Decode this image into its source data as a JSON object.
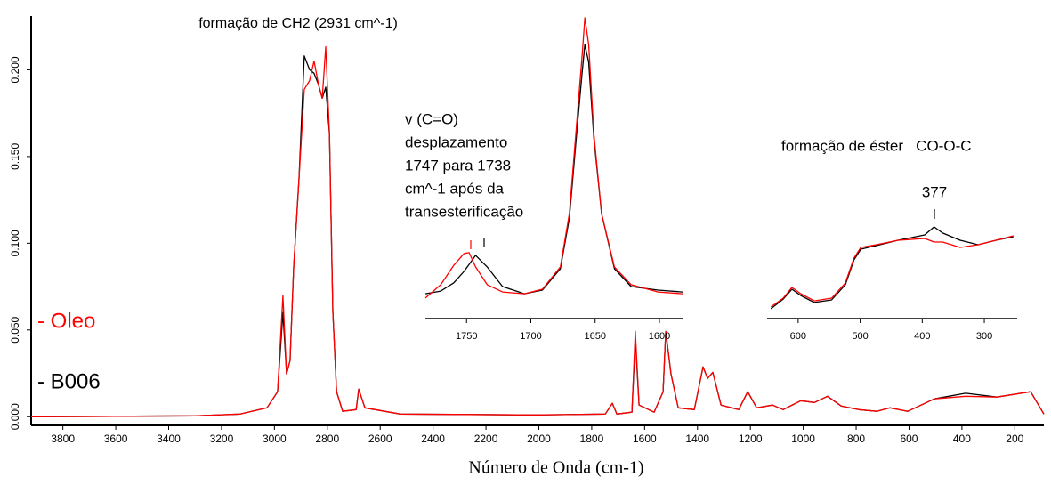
{
  "chart_data": [
    {
      "type": "line",
      "title": "formação de CH2 (2931 cm^-1)",
      "x_label": "Número de Onda (cm-1)",
      "xlim": [
        3920,
        90
      ],
      "ylim": [
        -0.005,
        0.231
      ],
      "xticks": [
        3800,
        3600,
        3400,
        3200,
        3000,
        2800,
        2600,
        2400,
        2200,
        2000,
        1800,
        1600,
        1400,
        1200,
        1000,
        800,
        600,
        400,
        200
      ],
      "yticks": [
        {
          "value": 0,
          "label": "0.000"
        },
        {
          "value": 0.05,
          "label": "0.050"
        },
        {
          "value": 0.1,
          "label": "0.100"
        },
        {
          "value": 0.15,
          "label": "0.150"
        },
        {
          "value": 0.2,
          "label": "0.200"
        }
      ],
      "x": [
        3920,
        3297,
        3129,
        3028,
        2988,
        2968,
        2954,
        2941,
        2927,
        2907,
        2887,
        2867,
        2850,
        2833,
        2819,
        2806,
        2792,
        2779,
        2765,
        2742,
        2691,
        2681,
        2658,
        2523,
        2018,
        1749,
        1722,
        1705,
        1648,
        1635,
        1621,
        1564,
        1530,
        1520,
        1500,
        1473,
        1412,
        1379,
        1362,
        1342,
        1311,
        1244,
        1210,
        1176,
        1116,
        1076,
        1009,
        958,
        908,
        857,
        790,
        722,
        672,
        605,
        504,
        386,
        268,
        140,
        90
      ],
      "series": [
        {
          "name": "- B006",
          "color": "#000000",
          "values": [
            0,
            0.0005,
            0.0015,
            0.0051,
            0.0144,
            0.06,
            0.0246,
            0.0323,
            0.0862,
            0.1374,
            0.208,
            0.2,
            0.198,
            0.1913,
            0.1836,
            0.19,
            0.1631,
            0.0605,
            0.0144,
            0.0031,
            0.0041,
            0.0159,
            0.0051,
            0.0015,
            0.001,
            0.0015,
            0.0077,
            0.0015,
            0.0026,
            0.045,
            0.0067,
            0.0026,
            0.0144,
            0.0492,
            0.0246,
            0.0051,
            0.0041,
            0.0287,
            0.0221,
            0.0256,
            0.0067,
            0.0041,
            0.0144,
            0.0051,
            0.0067,
            0.0041,
            0.0092,
            0.0082,
            0.0118,
            0.0062,
            0.0041,
            0.0031,
            0.0051,
            0.0031,
            0.0103,
            0.0135,
            0.0113,
            0.0144,
            0.0015
          ]
        },
        {
          "name": "- Oleo",
          "color": "#ff0000",
          "values": [
            0,
            0.0005,
            0.0015,
            0.0051,
            0.0144,
            0.0697,
            0.0246,
            0.0323,
            0.0862,
            0.1374,
            0.1887,
            0.1938,
            0.2051,
            0.1913,
            0.1836,
            0.2133,
            0.1631,
            0.0605,
            0.0144,
            0.0031,
            0.0041,
            0.0159,
            0.0051,
            0.0015,
            0.001,
            0.0015,
            0.0077,
            0.0015,
            0.0026,
            0.0492,
            0.0067,
            0.0026,
            0.0144,
            0.0492,
            0.0246,
            0.0051,
            0.0041,
            0.0287,
            0.0221,
            0.0256,
            0.0067,
            0.0041,
            0.0144,
            0.0051,
            0.0067,
            0.0041,
            0.0092,
            0.0082,
            0.0118,
            0.0062,
            0.0041,
            0.0031,
            0.0051,
            0.0031,
            0.0103,
            0.0118,
            0.0113,
            0.0144,
            0.0015
          ]
        }
      ]
    },
    {
      "type": "line",
      "annotation_lines": [
        "v (C=O)",
        "desplazamento",
        "1747 para 1738",
        "cm^-1 após da",
        "transesterificação"
      ],
      "xlim": [
        1782,
        1582
      ],
      "xticks": [
        1750,
        1700,
        1650,
        1600
      ],
      "x": [
        1782,
        1770,
        1760,
        1752,
        1748,
        1743,
        1734,
        1722,
        1705,
        1691,
        1677,
        1670,
        1665,
        1660,
        1658,
        1655,
        1651,
        1645,
        1635,
        1622,
        1601,
        1582
      ],
      "series": [
        {
          "color": "#000000",
          "values": [
            0.082,
            0.091,
            0.118,
            0.156,
            0.179,
            0.209,
            0.171,
            0.106,
            0.082,
            0.094,
            0.165,
            0.332,
            0.582,
            0.818,
            0.906,
            0.847,
            0.597,
            0.347,
            0.165,
            0.106,
            0.094,
            0.088
          ]
        },
        {
          "color": "#ff0000",
          "values": [
            0.068,
            0.112,
            0.176,
            0.215,
            0.218,
            0.171,
            0.112,
            0.088,
            0.082,
            0.097,
            0.171,
            0.347,
            0.612,
            0.876,
            0.994,
            0.906,
            0.612,
            0.347,
            0.171,
            0.112,
            0.088,
            0.082
          ]
        }
      ]
    },
    {
      "type": "line",
      "annotation": "formação de éster   CO-O-C",
      "peak_label": "377",
      "xlim": [
        650,
        247
      ],
      "xticks": [
        600,
        500,
        400,
        300
      ],
      "x": [
        644,
        624,
        610,
        596,
        574,
        546,
        524,
        510,
        499,
        474,
        439,
        396,
        381,
        367,
        339,
        310,
        281,
        253
      ],
      "series": [
        {
          "color": "#000000",
          "values": [
            0.093,
            0.186,
            0.28,
            0.22,
            0.153,
            0.178,
            0.322,
            0.559,
            0.661,
            0.695,
            0.746,
            0.797,
            0.873,
            0.814,
            0.746,
            0.703,
            0.746,
            0.78
          ]
        },
        {
          "color": "#ff0000",
          "values": [
            0.11,
            0.195,
            0.297,
            0.237,
            0.169,
            0.195,
            0.339,
            0.576,
            0.678,
            0.703,
            0.746,
            0.763,
            0.729,
            0.729,
            0.678,
            0.703,
            0.746,
            0.788
          ]
        }
      ]
    }
  ]
}
